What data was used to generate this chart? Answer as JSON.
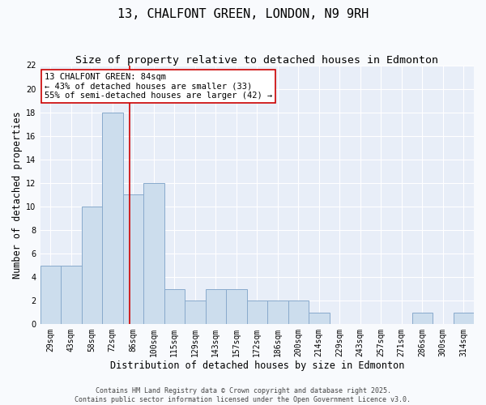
{
  "title": "13, CHALFONT GREEN, LONDON, N9 9RH",
  "subtitle": "Size of property relative to detached houses in Edmonton",
  "xlabel": "Distribution of detached houses by size in Edmonton",
  "ylabel": "Number of detached properties",
  "categories": [
    "29sqm",
    "43sqm",
    "58sqm",
    "72sqm",
    "86sqm",
    "100sqm",
    "115sqm",
    "129sqm",
    "143sqm",
    "157sqm",
    "172sqm",
    "186sqm",
    "200sqm",
    "214sqm",
    "229sqm",
    "243sqm",
    "257sqm",
    "271sqm",
    "286sqm",
    "300sqm",
    "314sqm"
  ],
  "values": [
    5,
    5,
    10,
    18,
    11,
    12,
    3,
    2,
    3,
    3,
    2,
    2,
    2,
    1,
    0,
    0,
    0,
    0,
    1,
    0,
    1
  ],
  "bar_color": "#ccdded",
  "bar_edge_color": "#88aacc",
  "bar_linewidth": 0.7,
  "red_line_index": 3.83,
  "red_line_color": "#cc0000",
  "annotation_text": "13 CHALFONT GREEN: 84sqm\n← 43% of detached houses are smaller (33)\n55% of semi-detached houses are larger (42) →",
  "annotation_box_color": "#ffffff",
  "annotation_box_edge": "#cc0000",
  "ylim": [
    0,
    22
  ],
  "yticks": [
    0,
    2,
    4,
    6,
    8,
    10,
    12,
    14,
    16,
    18,
    20,
    22
  ],
  "fig_bg_color": "#f8fafd",
  "ax_bg_color": "#e8eef8",
  "grid_color": "#ffffff",
  "footer": "Contains HM Land Registry data © Crown copyright and database right 2025.\nContains public sector information licensed under the Open Government Licence v3.0.",
  "title_fontsize": 11,
  "subtitle_fontsize": 9.5,
  "xlabel_fontsize": 8.5,
  "ylabel_fontsize": 8.5,
  "tick_fontsize": 7,
  "annotation_fontsize": 7.5,
  "footer_fontsize": 6
}
